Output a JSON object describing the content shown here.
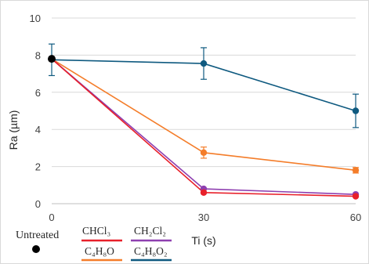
{
  "chart_data": {
    "type": "line",
    "xlabel": "Ti (s)",
    "ylabel": "Ra (µm)",
    "xlim": [
      0,
      60
    ],
    "ylim": [
      0,
      10
    ],
    "x": [
      0,
      30,
      60
    ],
    "x_tick_labels": [
      "0",
      "30",
      "60"
    ],
    "y_ticks": [
      0,
      2,
      4,
      6,
      8,
      10
    ],
    "y_tick_labels": [
      "0",
      "2",
      "4",
      "6",
      "8",
      "10"
    ],
    "grid": "horizontal",
    "legend_position": "bottom",
    "untreated": {
      "label": "Untreated",
      "x": 0,
      "y": 7.8,
      "color": "#000000"
    },
    "series": [
      {
        "name": "CHCl₃",
        "color": "#e8202a",
        "values": [
          7.8,
          0.6,
          0.4
        ]
      },
      {
        "name": "CH₂Cl₂",
        "color": "#8e3fb0",
        "values": [
          7.8,
          0.8,
          0.5
        ]
      },
      {
        "name": "C₄H₈O",
        "color": "#f47d2a",
        "values": [
          7.8,
          2.75,
          1.8
        ],
        "error": [
          0,
          0.3,
          0.15
        ]
      },
      {
        "name": "C₄H₈O₂",
        "color": "#0f5a80",
        "values": [
          7.75,
          7.55,
          5.0
        ],
        "error": [
          0.85,
          0.85,
          0.9
        ]
      }
    ]
  }
}
